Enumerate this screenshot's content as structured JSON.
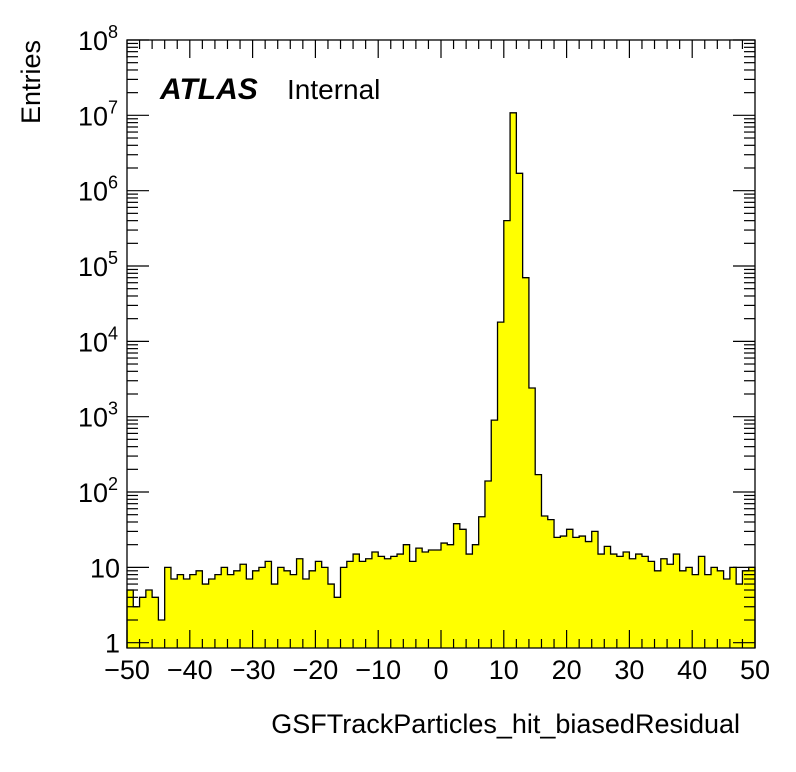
{
  "chart_data": {
    "type": "bar",
    "style": "histogram-step-filled",
    "log_y": true,
    "fill_color": "#ffff00",
    "line_color": "#000000",
    "annotation": {
      "bold_text": "ATLAS",
      "text": "Internal"
    },
    "xlabel": "GSFTrackParticles_hit_biasedResidual",
    "ylabel": "Entries",
    "xlim": [
      -50,
      50
    ],
    "ylim": [
      0.85,
      100000000
    ],
    "x_ticks": [
      "−50",
      "−40",
      "−30",
      "−20",
      "−10",
      "0",
      "10",
      "20",
      "30",
      "40",
      "50"
    ],
    "x_tick_values": [
      -50,
      -40,
      -30,
      -20,
      -10,
      0,
      10,
      20,
      30,
      40,
      50
    ],
    "y_ticks": [
      {
        "value": 1,
        "base": "1",
        "exp": ""
      },
      {
        "value": 10,
        "base": "10",
        "exp": ""
      },
      {
        "value": 100,
        "base": "10",
        "exp": "2"
      },
      {
        "value": 1000,
        "base": "10",
        "exp": "3"
      },
      {
        "value": 10000,
        "base": "10",
        "exp": "4"
      },
      {
        "value": 100000,
        "base": "10",
        "exp": "5"
      },
      {
        "value": 1000000,
        "base": "10",
        "exp": "6"
      },
      {
        "value": 10000000,
        "base": "10",
        "exp": "7"
      },
      {
        "value": 100000000,
        "base": "10",
        "exp": "8"
      }
    ],
    "bin_edges_start": -50,
    "bin_width": 1,
    "values": [
      5,
      3,
      4,
      5,
      4,
      2,
      10,
      7,
      8,
      7,
      8,
      9,
      6,
      7,
      8,
      10,
      8,
      9,
      11,
      7,
      9,
      10,
      12,
      6,
      10,
      9,
      8,
      13,
      7,
      9,
      12,
      10,
      6,
      4,
      10,
      12,
      15,
      12,
      13,
      16,
      14,
      13,
      14,
      15,
      20,
      12,
      18,
      16,
      17,
      17,
      21,
      20,
      38,
      32,
      15,
      20,
      47,
      140,
      900,
      18000,
      400000,
      10800000,
      1700000,
      70000,
      2400,
      170,
      48,
      43,
      25,
      26,
      32,
      25,
      26,
      22,
      30,
      15,
      19,
      15,
      14,
      16,
      13,
      15,
      14,
      12,
      9,
      13,
      11,
      15,
      9,
      10,
      8,
      14,
      8,
      10,
      9,
      7,
      10,
      6,
      9,
      10
    ]
  }
}
